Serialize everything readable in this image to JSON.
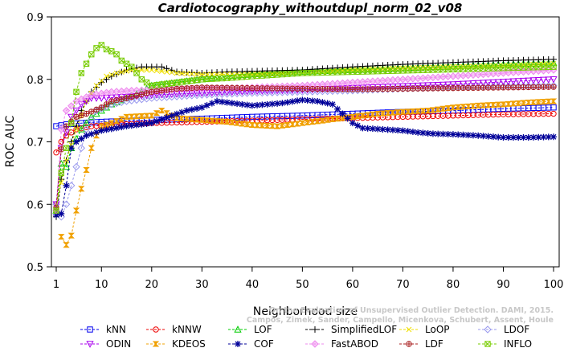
{
  "chart_data": {
    "type": "line",
    "title": "Cardiotocography_withoutdupl_norm_02_v08",
    "xlabel": "Neighborhood size",
    "ylabel": "ROC AUC",
    "xlim": [
      1,
      100
    ],
    "ylim": [
      0.5,
      0.9
    ],
    "x_ticks": [
      1,
      10,
      20,
      30,
      40,
      50,
      60,
      70,
      80,
      90,
      100
    ],
    "y_ticks": [
      0.5,
      0.6,
      0.7,
      0.8,
      0.9
    ],
    "grid": false,
    "legend_position": "bottom",
    "watermark_lines": [
      "Campos, Zimek, Sander, Campello, Micenkova, Schubert, Assent, Houle",
      "On the Evaluation of Unsupervised Outlier Detection. DAMI, 2015."
    ],
    "series": [
      {
        "name": "kNN",
        "color": "#0000ee",
        "marker": "square",
        "keypoints": [
          [
            1,
            0.725
          ],
          [
            3,
            0.728
          ],
          [
            6,
            0.73
          ],
          [
            10,
            0.732
          ],
          [
            20,
            0.735
          ],
          [
            30,
            0.737
          ],
          [
            40,
            0.74
          ],
          [
            50,
            0.742
          ],
          [
            60,
            0.745
          ],
          [
            70,
            0.748
          ],
          [
            80,
            0.75
          ],
          [
            90,
            0.753
          ],
          [
            100,
            0.755
          ]
        ]
      },
      {
        "name": "kNNW",
        "color": "#ee0000",
        "marker": "circle",
        "keypoints": [
          [
            1,
            0.683
          ],
          [
            2,
            0.7
          ],
          [
            3,
            0.71
          ],
          [
            5,
            0.72
          ],
          [
            8,
            0.725
          ],
          [
            12,
            0.727
          ],
          [
            20,
            0.73
          ],
          [
            30,
            0.732
          ],
          [
            40,
            0.734
          ],
          [
            50,
            0.736
          ],
          [
            60,
            0.738
          ],
          [
            70,
            0.74
          ],
          [
            80,
            0.742
          ],
          [
            90,
            0.744
          ],
          [
            100,
            0.745
          ]
        ]
      },
      {
        "name": "LOF",
        "color": "#00cc00",
        "marker": "triangle-up",
        "keypoints": [
          [
            1,
            0.59
          ],
          [
            2,
            0.665
          ],
          [
            3,
            0.66
          ],
          [
            4,
            0.69
          ],
          [
            6,
            0.72
          ],
          [
            8,
            0.74
          ],
          [
            10,
            0.75
          ],
          [
            12,
            0.76
          ],
          [
            15,
            0.77
          ],
          [
            18,
            0.78
          ],
          [
            20,
            0.79
          ],
          [
            25,
            0.795
          ],
          [
            30,
            0.8
          ],
          [
            35,
            0.805
          ],
          [
            40,
            0.808
          ],
          [
            50,
            0.812
          ],
          [
            60,
            0.815
          ],
          [
            70,
            0.818
          ],
          [
            80,
            0.821
          ],
          [
            90,
            0.824
          ],
          [
            100,
            0.826
          ]
        ]
      },
      {
        "name": "SimplifiedLOF",
        "color": "#000000",
        "marker": "plus",
        "keypoints": [
          [
            1,
            0.58
          ],
          [
            2,
            0.64
          ],
          [
            3,
            0.67
          ],
          [
            4,
            0.7
          ],
          [
            6,
            0.75
          ],
          [
            8,
            0.78
          ],
          [
            10,
            0.795
          ],
          [
            12,
            0.805
          ],
          [
            15,
            0.815
          ],
          [
            18,
            0.82
          ],
          [
            22,
            0.82
          ],
          [
            25,
            0.812
          ],
          [
            30,
            0.81
          ],
          [
            35,
            0.812
          ],
          [
            40,
            0.813
          ],
          [
            50,
            0.815
          ],
          [
            60,
            0.82
          ],
          [
            70,
            0.824
          ],
          [
            80,
            0.827
          ],
          [
            90,
            0.83
          ],
          [
            100,
            0.832
          ]
        ]
      },
      {
        "name": "LoOP",
        "color": "#f0e000",
        "marker": "x",
        "keypoints": [
          [
            1,
            0.6
          ],
          [
            3,
            0.67
          ],
          [
            5,
            0.72
          ],
          [
            7,
            0.765
          ],
          [
            9,
            0.79
          ],
          [
            11,
            0.805
          ],
          [
            13,
            0.81
          ],
          [
            16,
            0.815
          ],
          [
            20,
            0.815
          ],
          [
            25,
            0.81
          ],
          [
            30,
            0.808
          ],
          [
            40,
            0.808
          ],
          [
            50,
            0.81
          ],
          [
            60,
            0.815
          ],
          [
            70,
            0.818
          ],
          [
            80,
            0.82
          ],
          [
            90,
            0.822
          ],
          [
            100,
            0.825
          ]
        ]
      },
      {
        "name": "LDOF",
        "color": "#9999ee",
        "marker": "diamond",
        "keypoints": [
          [
            1,
            0.6
          ],
          [
            2,
            0.58
          ],
          [
            3,
            0.6
          ],
          [
            4,
            0.63
          ],
          [
            5,
            0.66
          ],
          [
            7,
            0.72
          ],
          [
            9,
            0.75
          ],
          [
            12,
            0.76
          ],
          [
            15,
            0.765
          ],
          [
            20,
            0.77
          ],
          [
            30,
            0.775
          ],
          [
            40,
            0.778
          ],
          [
            50,
            0.78
          ],
          [
            60,
            0.782
          ],
          [
            70,
            0.785
          ],
          [
            80,
            0.787
          ],
          [
            90,
            0.789
          ],
          [
            100,
            0.79
          ]
        ]
      },
      {
        "name": "ODIN",
        "color": "#aa00ee",
        "marker": "triangle-down",
        "keypoints": [
          [
            1,
            0.6
          ],
          [
            2,
            0.69
          ],
          [
            4,
            0.74
          ],
          [
            6,
            0.76
          ],
          [
            8,
            0.77
          ],
          [
            10,
            0.77
          ],
          [
            15,
            0.772
          ],
          [
            20,
            0.775
          ],
          [
            30,
            0.778
          ],
          [
            40,
            0.781
          ],
          [
            50,
            0.783
          ],
          [
            60,
            0.786
          ],
          [
            70,
            0.789
          ],
          [
            80,
            0.792
          ],
          [
            90,
            0.796
          ],
          [
            100,
            0.8
          ]
        ]
      },
      {
        "name": "KDEOS",
        "color": "#f0a000",
        "marker": "hourglass",
        "keypoints": [
          [
            2,
            0.548
          ],
          [
            3,
            0.535
          ],
          [
            4,
            0.55
          ],
          [
            5,
            0.59
          ],
          [
            6,
            0.625
          ],
          [
            7,
            0.655
          ],
          [
            8,
            0.69
          ],
          [
            9,
            0.71
          ],
          [
            10,
            0.725
          ],
          [
            12,
            0.73
          ],
          [
            15,
            0.74
          ],
          [
            20,
            0.742
          ],
          [
            22,
            0.75
          ],
          [
            25,
            0.738
          ],
          [
            30,
            0.735
          ],
          [
            35,
            0.732
          ],
          [
            40,
            0.727
          ],
          [
            45,
            0.725
          ],
          [
            50,
            0.73
          ],
          [
            55,
            0.735
          ],
          [
            60,
            0.74
          ],
          [
            65,
            0.745
          ],
          [
            70,
            0.748
          ],
          [
            75,
            0.75
          ],
          [
            80,
            0.755
          ],
          [
            85,
            0.758
          ],
          [
            90,
            0.76
          ],
          [
            95,
            0.763
          ],
          [
            100,
            0.765
          ]
        ]
      },
      {
        "name": "COF",
        "color": "#000099",
        "marker": "star",
        "keypoints": [
          [
            1,
            0.583
          ],
          [
            2,
            0.585
          ],
          [
            3,
            0.63
          ],
          [
            4,
            0.69
          ],
          [
            5,
            0.7
          ],
          [
            7,
            0.71
          ],
          [
            10,
            0.718
          ],
          [
            15,
            0.725
          ],
          [
            20,
            0.73
          ],
          [
            24,
            0.742
          ],
          [
            27,
            0.75
          ],
          [
            30,
            0.755
          ],
          [
            33,
            0.765
          ],
          [
            36,
            0.762
          ],
          [
            40,
            0.758
          ],
          [
            43,
            0.76
          ],
          [
            46,
            0.762
          ],
          [
            50,
            0.767
          ],
          [
            53,
            0.765
          ],
          [
            56,
            0.76
          ],
          [
            58,
            0.745
          ],
          [
            60,
            0.73
          ],
          [
            62,
            0.722
          ],
          [
            66,
            0.72
          ],
          [
            70,
            0.718
          ],
          [
            73,
            0.715
          ],
          [
            76,
            0.713
          ],
          [
            80,
            0.712
          ],
          [
            85,
            0.71
          ],
          [
            90,
            0.707
          ],
          [
            95,
            0.707
          ],
          [
            100,
            0.708
          ]
        ]
      },
      {
        "name": "FastABOD",
        "color": "#ee88ee",
        "marker": "diamond-filled",
        "keypoints": [
          [
            1,
            0.59
          ],
          [
            2,
            0.72
          ],
          [
            3,
            0.75
          ],
          [
            5,
            0.765
          ],
          [
            8,
            0.775
          ],
          [
            12,
            0.78
          ],
          [
            16,
            0.782
          ],
          [
            20,
            0.783
          ],
          [
            30,
            0.785
          ],
          [
            40,
            0.787
          ],
          [
            50,
            0.79
          ],
          [
            60,
            0.795
          ],
          [
            70,
            0.8
          ],
          [
            80,
            0.805
          ],
          [
            90,
            0.81
          ],
          [
            100,
            0.815
          ]
        ]
      },
      {
        "name": "LDF",
        "color": "#aa2222",
        "marker": "circle-plus",
        "keypoints": [
          [
            1,
            0.595
          ],
          [
            2,
            0.688
          ],
          [
            3,
            0.725
          ],
          [
            5,
            0.74
          ],
          [
            7,
            0.745
          ],
          [
            10,
            0.755
          ],
          [
            12,
            0.765
          ],
          [
            15,
            0.77
          ],
          [
            20,
            0.78
          ],
          [
            25,
            0.785
          ],
          [
            30,
            0.787
          ],
          [
            40,
            0.786
          ],
          [
            50,
            0.785
          ],
          [
            60,
            0.784
          ],
          [
            70,
            0.785
          ],
          [
            80,
            0.786
          ],
          [
            90,
            0.787
          ],
          [
            100,
            0.788
          ]
        ]
      },
      {
        "name": "INFLO",
        "color": "#77cc00",
        "marker": "square-x",
        "keypoints": [
          [
            1,
            0.59
          ],
          [
            2,
            0.65
          ],
          [
            3,
            0.69
          ],
          [
            4,
            0.73
          ],
          [
            5,
            0.78
          ],
          [
            6,
            0.81
          ],
          [
            7,
            0.825
          ],
          [
            8,
            0.84
          ],
          [
            9,
            0.85
          ],
          [
            10,
            0.855
          ],
          [
            11,
            0.848
          ],
          [
            12,
            0.845
          ],
          [
            13,
            0.84
          ],
          [
            14,
            0.83
          ],
          [
            16,
            0.82
          ],
          [
            18,
            0.8
          ],
          [
            20,
            0.79
          ],
          [
            25,
            0.795
          ],
          [
            30,
            0.8
          ],
          [
            35,
            0.802
          ],
          [
            40,
            0.805
          ],
          [
            50,
            0.81
          ],
          [
            60,
            0.812
          ],
          [
            70,
            0.814
          ],
          [
            80,
            0.816
          ],
          [
            90,
            0.818
          ],
          [
            100,
            0.82
          ]
        ]
      }
    ]
  }
}
